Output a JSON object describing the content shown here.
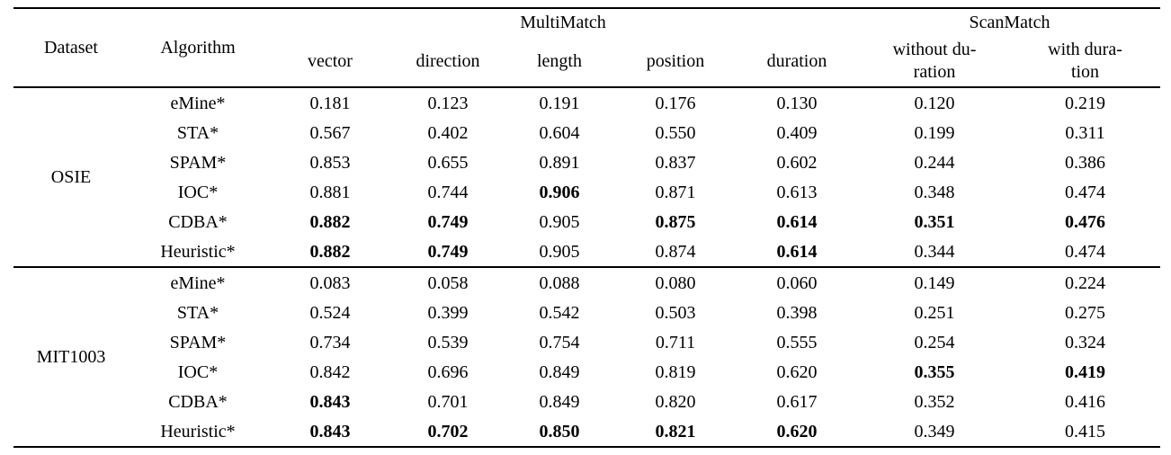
{
  "table": {
    "header": {
      "dataset": "Dataset",
      "algorithm": "Algorithm",
      "groups": [
        {
          "label": "MultiMatch"
        },
        {
          "label": "ScanMatch"
        }
      ],
      "metrics": [
        "vector",
        "direction",
        "length",
        "position",
        "duration",
        "without du-\nration",
        "with dura-\ntion"
      ]
    },
    "groups": [
      {
        "dataset": "OSIE",
        "rows": [
          {
            "algorithm": "eMine*",
            "values": [
              "0.181",
              "0.123",
              "0.191",
              "0.176",
              "0.130",
              "0.120",
              "0.219"
            ],
            "bold": []
          },
          {
            "algorithm": "STA*",
            "values": [
              "0.567",
              "0.402",
              "0.604",
              "0.550",
              "0.409",
              "0.199",
              "0.311"
            ],
            "bold": []
          },
          {
            "algorithm": "SPAM*",
            "values": [
              "0.853",
              "0.655",
              "0.891",
              "0.837",
              "0.602",
              "0.244",
              "0.386"
            ],
            "bold": []
          },
          {
            "algorithm": "IOC*",
            "values": [
              "0.881",
              "0.744",
              "0.906",
              "0.871",
              "0.613",
              "0.348",
              "0.474"
            ],
            "bold": [
              2
            ]
          },
          {
            "algorithm": "CDBA*",
            "values": [
              "0.882",
              "0.749",
              "0.905",
              "0.875",
              "0.614",
              "0.351",
              "0.476"
            ],
            "bold": [
              0,
              1,
              3,
              4,
              5,
              6
            ]
          },
          {
            "algorithm": "Heuristic*",
            "values": [
              "0.882",
              "0.749",
              "0.905",
              "0.874",
              "0.614",
              "0.344",
              "0.474"
            ],
            "bold": [
              0,
              1,
              4
            ]
          }
        ]
      },
      {
        "dataset": "MIT1003",
        "rows": [
          {
            "algorithm": "eMine*",
            "values": [
              "0.083",
              "0.058",
              "0.088",
              "0.080",
              "0.060",
              "0.149",
              "0.224"
            ],
            "bold": []
          },
          {
            "algorithm": "STA*",
            "values": [
              "0.524",
              "0.399",
              "0.542",
              "0.503",
              "0.398",
              "0.251",
              "0.275"
            ],
            "bold": []
          },
          {
            "algorithm": "SPAM*",
            "values": [
              "0.734",
              "0.539",
              "0.754",
              "0.711",
              "0.555",
              "0.254",
              "0.324"
            ],
            "bold": []
          },
          {
            "algorithm": "IOC*",
            "values": [
              "0.842",
              "0.696",
              "0.849",
              "0.819",
              "0.620",
              "0.355",
              "0.419"
            ],
            "bold": [
              5,
              6
            ]
          },
          {
            "algorithm": "CDBA*",
            "values": [
              "0.843",
              "0.701",
              "0.849",
              "0.820",
              "0.617",
              "0.352",
              "0.416"
            ],
            "bold": [
              0
            ]
          },
          {
            "algorithm": "Heuristic*",
            "values": [
              "0.843",
              "0.702",
              "0.850",
              "0.821",
              "0.620",
              "0.349",
              "0.415"
            ],
            "bold": [
              0,
              1,
              2,
              3,
              4
            ]
          }
        ]
      }
    ]
  }
}
